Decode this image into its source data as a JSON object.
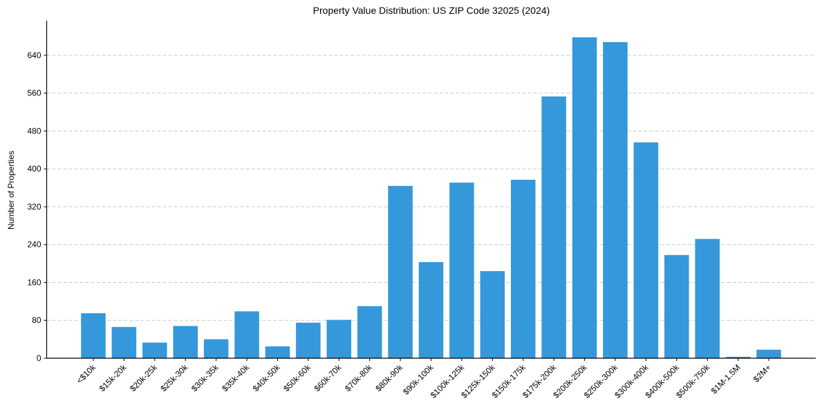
{
  "chart": {
    "title": "Property Value Distribution: US ZIP Code 32025 (2024)",
    "ylabel": "Number of Properties",
    "xlabel": "",
    "bar_color": "#3498db",
    "grid_color": "#c8c8c8"
  },
  "chart_data": {
    "type": "bar",
    "title": "Property Value Distribution: US ZIP Code 32025 (2024)",
    "xlabel": "",
    "ylabel": "Number of Properties",
    "categories": [
      "<$10k",
      "$15k-20k",
      "$20k-25k",
      "$25k-30k",
      "$30k-35k",
      "$35k-40k",
      "$40k-50k",
      "$50k-60k",
      "$60k-70k",
      "$70k-80k",
      "$80k-90k",
      "$90k-100k",
      "$100k-125k",
      "$125k-150k",
      "$150k-175k",
      "$175k-200k",
      "$200k-250k",
      "$250k-300k",
      "$300k-400k",
      "$400k-500k",
      "$500k-750k",
      "$1M-1.5M",
      "$2M+"
    ],
    "values": [
      95,
      66,
      33,
      68,
      40,
      99,
      25,
      75,
      81,
      110,
      364,
      203,
      371,
      184,
      377,
      553,
      678,
      668,
      456,
      218,
      252,
      3,
      18
    ],
    "ylim": [
      0,
      713
    ],
    "yticks": [
      0,
      80,
      160,
      240,
      320,
      400,
      480,
      560,
      640
    ],
    "grid": {
      "y": true,
      "x": false,
      "style": "dashed"
    },
    "legend": null,
    "x_tick_rotation": 45
  }
}
